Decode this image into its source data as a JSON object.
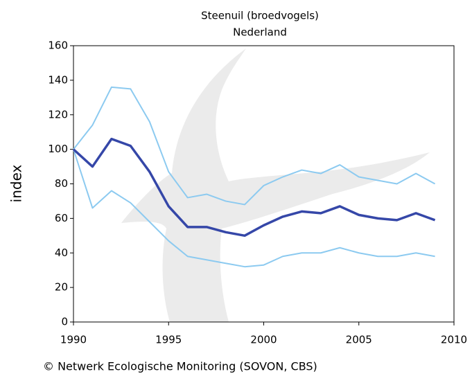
{
  "chart_data": {
    "type": "line",
    "title": "Steenuil (broedvogels)",
    "subtitle": "Nederland",
    "y_label": "index",
    "footer": "© Netwerk Ecologische Monitoring (SOVON, CBS)",
    "x": [
      1990,
      1991,
      1992,
      1993,
      1994,
      1995,
      1996,
      1997,
      1998,
      1999,
      2000,
      2001,
      2002,
      2003,
      2004,
      2005,
      2006,
      2007,
      2008,
      2009
    ],
    "series": [
      {
        "color": "#8ccaf0",
        "width": 2,
        "values": [
          100,
          114,
          136,
          135,
          116,
          87,
          72,
          74,
          70,
          68,
          79,
          84,
          88,
          86,
          91,
          84,
          82,
          80,
          86,
          80
        ]
      },
      {
        "color": "#8ccaf0",
        "width": 2,
        "values": [
          100,
          66,
          76,
          69,
          58,
          47,
          38,
          36,
          34,
          32,
          33,
          38,
          40,
          40,
          43,
          40,
          38,
          38,
          40,
          38
        ]
      },
      {
        "color": "#3547a8",
        "width": 3.5,
        "values": [
          100,
          90,
          106,
          102,
          87,
          67,
          55,
          55,
          52,
          50,
          56,
          61,
          64,
          63,
          67,
          62,
          60,
          59,
          63,
          59
        ]
      }
    ],
    "xlim": [
      1990,
      2010
    ],
    "xticks": [
      1990,
      1995,
      2000,
      2005,
      2010
    ],
    "ylim": [
      0,
      160
    ],
    "yticks": [
      0,
      20,
      40,
      60,
      80,
      100,
      120,
      140,
      160
    ]
  }
}
